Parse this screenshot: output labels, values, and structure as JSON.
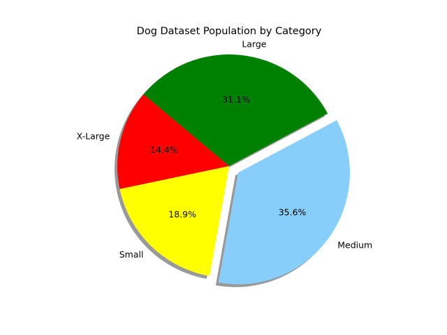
{
  "chart_data": {
    "type": "pie",
    "title": "Dog Dataset Population by Category",
    "start_angle_deg": 140,
    "direction": "counterclockwise",
    "shadow": true,
    "slices": [
      {
        "label": "X-Large",
        "value": 14.4,
        "pct_label": "14.4%",
        "color": "#ff0000",
        "explode": false
      },
      {
        "label": "Small",
        "value": 18.9,
        "pct_label": "18.9%",
        "color": "#ffff00",
        "explode": false
      },
      {
        "label": "Medium",
        "value": 35.6,
        "pct_label": "35.6%",
        "color": "#87cefa",
        "explode": true
      },
      {
        "label": "Large",
        "value": 31.1,
        "pct_label": "31.1%",
        "color": "#008000",
        "explode": false
      }
    ]
  }
}
